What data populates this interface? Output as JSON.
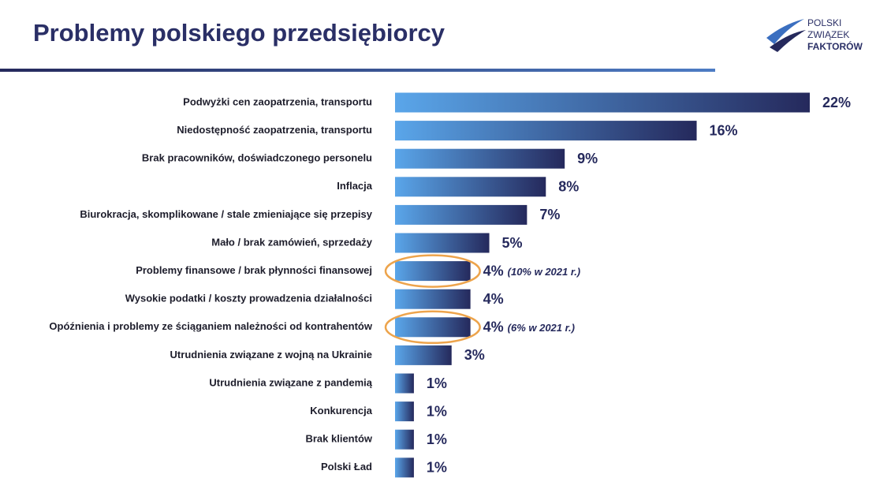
{
  "chart_data": {
    "type": "bar",
    "orientation": "horizontal",
    "title": "Problemy polskiego przedsiębiorcy",
    "logo": [
      "POLSKI",
      "ZWIĄZEK",
      "FAKTORÓW"
    ],
    "categories": [
      "Podwyżki cen zaopatrzenia, transportu",
      "Niedostępność zaopatrzenia, transportu",
      "Brak pracowników, doświadczonego personelu",
      "Inflacja",
      "Biurokracja, skomplikowane / stale zmieniające się przepisy",
      "Mało / brak zamówień, sprzedaży",
      "Problemy finansowe / brak płynności finansowej",
      "Wysokie podatki / koszty prowadzenia działalności",
      "Opóźnienia i problemy ze ściąganiem należności od kontrahentów",
      "Utrudnienia związane z wojną na Ukrainie",
      "Utrudnienia związane z pandemią",
      "Konkurencja",
      "Brak klientów",
      "Polski Ład"
    ],
    "values": [
      22,
      16,
      9,
      8,
      7,
      5,
      4,
      4,
      4,
      3,
      1,
      1,
      1,
      1
    ],
    "value_labels": [
      "22%",
      "16%",
      "9%",
      "8%",
      "7%",
      "5%",
      "4%",
      "4%",
      "4%",
      "3%",
      "1%",
      "1%",
      "1%",
      "1%"
    ],
    "notes": [
      null,
      null,
      null,
      null,
      null,
      null,
      "(10% w 2021 r.)",
      null,
      "(6% w 2021 r.)",
      null,
      null,
      null,
      null,
      null
    ],
    "gradient": [
      "#5aa6ea",
      "#25295c"
    ],
    "highlight_color": "#eda44c"
  }
}
